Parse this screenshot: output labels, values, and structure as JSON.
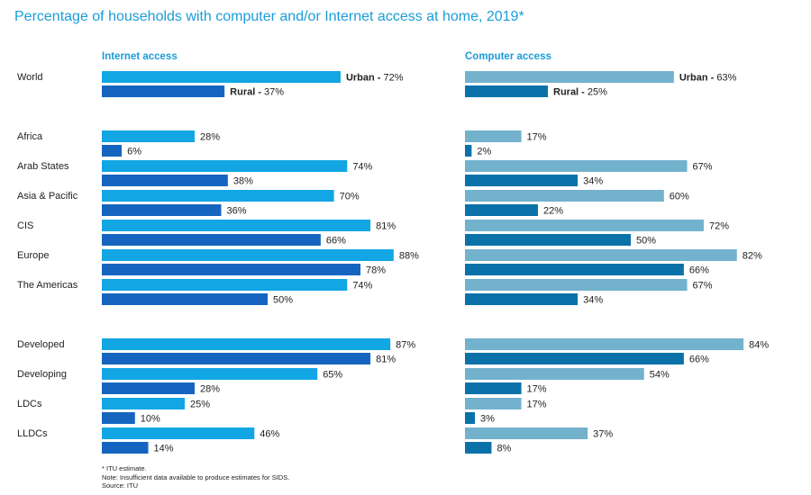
{
  "title": "Percentage of households with computer and/or Internet access at home, 2019*",
  "colors": {
    "title": "#1a9cd8",
    "internet_urban": "#12a6e4",
    "internet_rural": "#1565c0",
    "computer_urban": "#72b2cd",
    "computer_rural": "#0a72a8"
  },
  "chart_data": {
    "type": "bar",
    "orientation": "horizontal",
    "panels": [
      {
        "key": "internet",
        "title": "Internet access"
      },
      {
        "key": "computer",
        "title": "Computer access"
      }
    ],
    "series": [
      {
        "name": "Urban"
      },
      {
        "name": "Rural"
      }
    ],
    "categories": [
      "World",
      "Africa",
      "Arab States",
      "Asia & Pacific",
      "CIS",
      "Europe",
      "The Americas",
      "Developed",
      "Developing",
      "LDCs",
      "LLDCs"
    ],
    "values": {
      "internet": {
        "urban": [
          72,
          28,
          74,
          70,
          81,
          88,
          74,
          87,
          65,
          25,
          46
        ],
        "rural": [
          37,
          6,
          38,
          36,
          66,
          78,
          50,
          81,
          28,
          10,
          14
        ]
      },
      "computer": {
        "urban": [
          63,
          17,
          67,
          60,
          72,
          82,
          67,
          84,
          54,
          17,
          37
        ],
        "rural": [
          25,
          2,
          34,
          22,
          50,
          66,
          34,
          66,
          17,
          3,
          8
        ]
      }
    },
    "value_suffix": "%",
    "xlim": [
      0,
      100
    ],
    "grid": false,
    "legend": "inline labels on World bars"
  },
  "world_labels": {
    "urban": "Urban -",
    "rural": "Rural -"
  },
  "notes": [
    "* ITU estimate.",
    "Note: Insufficient data available to produce estimates for SIDS.",
    "Source: ITU"
  ]
}
